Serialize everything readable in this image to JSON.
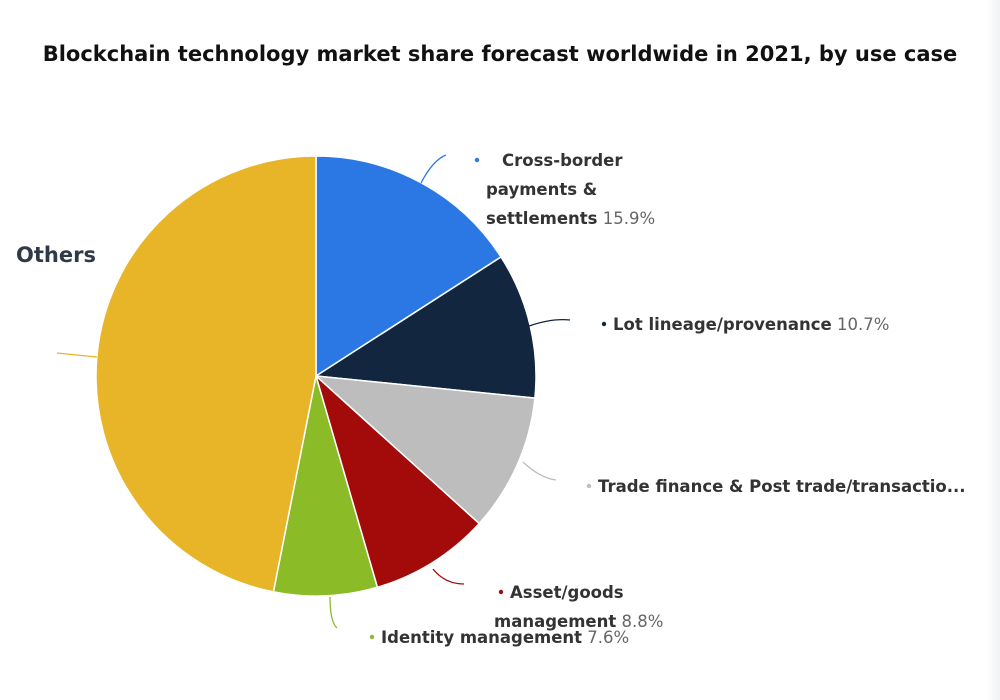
{
  "chart_data": {
    "type": "pie",
    "title": "Blockchain technology market share forecast worldwide in 2021, by use case",
    "slices": [
      {
        "label_lines": [
          "Cross-border",
          "payments &",
          "settlements"
        ],
        "value": 15.9,
        "value_text": "15.9%",
        "color": "#2b78e4"
      },
      {
        "label_lines": [
          "Lot lineage/provenance"
        ],
        "value": 10.7,
        "value_text": "10.7%",
        "color": "#12263f"
      },
      {
        "label_lines": [
          "Trade finance & Post trade/transactio..."
        ],
        "value": 10.1,
        "value_text": "",
        "color": "#bdbdbd"
      },
      {
        "label_lines": [
          "Asset/goods",
          "management"
        ],
        "value": 8.8,
        "value_text": "8.8%",
        "color": "#a30b0b"
      },
      {
        "label_lines": [
          "Identity management"
        ],
        "value": 7.6,
        "value_text": "7.6%",
        "color": "#8cbb28"
      },
      {
        "label_lines": [
          "Others"
        ],
        "value": 46.9,
        "value_text": "",
        "color": "#e8b528"
      }
    ]
  }
}
